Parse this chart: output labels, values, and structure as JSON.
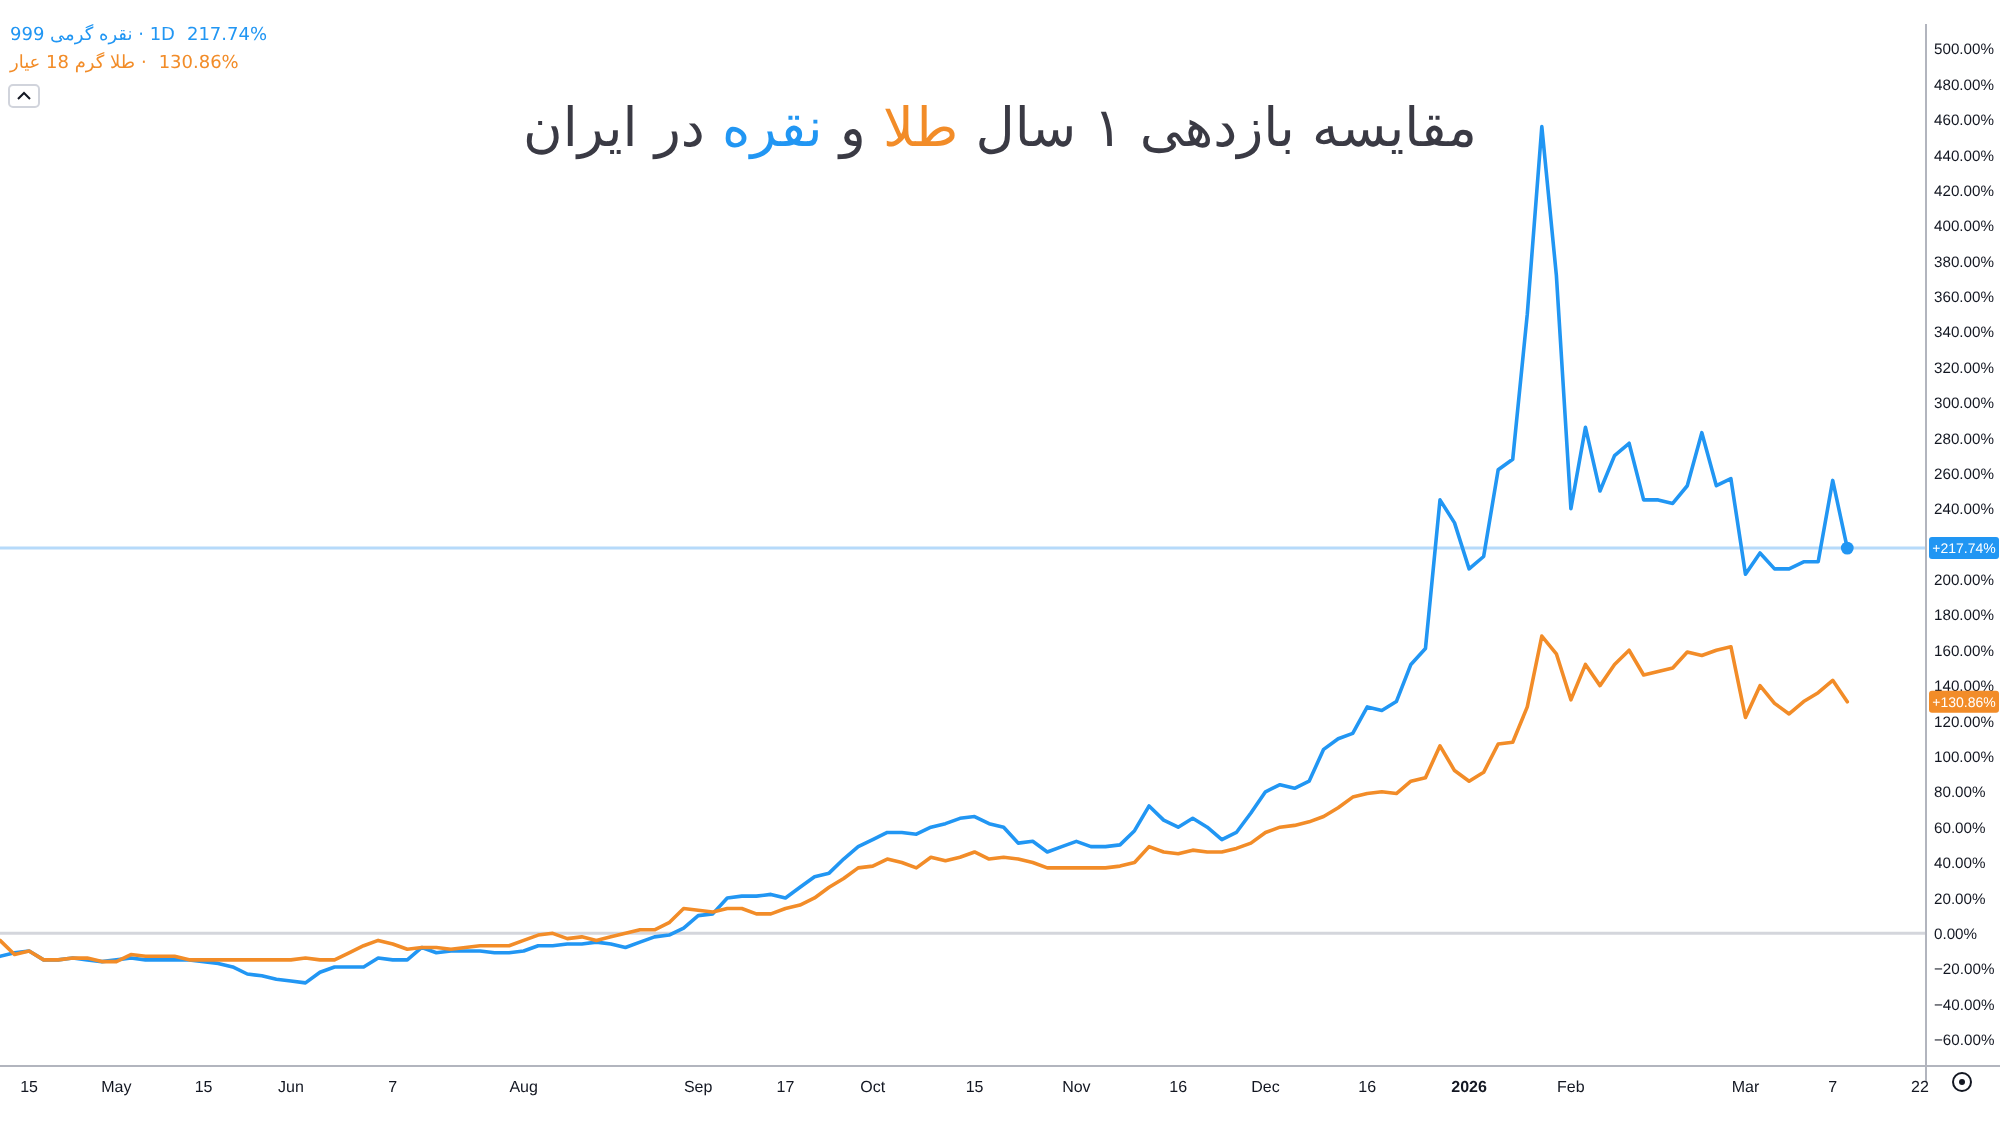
{
  "chart_data": {
    "type": "line",
    "title": "مقایسه بازدهی ۱ سال طلا و نقره در ایران",
    "categories": [
      null,
      null,
      "15",
      null,
      null,
      null,
      null,
      null,
      "May",
      null,
      null,
      null,
      null,
      null,
      "15",
      null,
      null,
      null,
      null,
      null,
      "Jun",
      null,
      null,
      null,
      null,
      null,
      null,
      "7",
      null,
      null,
      null,
      null,
      null,
      null,
      null,
      null,
      "Aug",
      null,
      null,
      null,
      null,
      null,
      null,
      null,
      null,
      null,
      null,
      null,
      "Sep",
      null,
      null,
      null,
      null,
      null,
      "17",
      null,
      null,
      null,
      null,
      null,
      "Oct",
      null,
      null,
      null,
      null,
      null,
      null,
      "15",
      null,
      null,
      null,
      null,
      null,
      null,
      "Nov",
      null,
      null,
      null,
      null,
      null,
      null,
      "16",
      null,
      null,
      null,
      null,
      null,
      "Dec",
      null,
      null,
      null,
      null,
      null,
      null,
      "16",
      null,
      null,
      null,
      null,
      null,
      null,
      "2026",
      null,
      null,
      null,
      null,
      null,
      null,
      "Feb",
      null,
      null,
      null,
      null,
      null,
      null,
      null,
      null,
      null,
      null,
      null,
      "Mar",
      null,
      null,
      null,
      null,
      null,
      "7",
      null,
      null,
      null,
      null,
      null,
      "22"
    ],
    "series": [
      {
        "name": "نقره گرمی 999 · 1D",
        "color": "#2196f3",
        "values": [
          -13,
          -11,
          -10,
          -15,
          -15,
          -14,
          -15,
          -16,
          -15,
          -14,
          -15,
          -15,
          -15,
          -15,
          -16,
          -17,
          -19,
          -23,
          -24,
          -26,
          -27,
          -28,
          -22,
          -19,
          -19,
          -19,
          -14,
          -15,
          -15,
          -8,
          -11,
          -10,
          -10,
          -10,
          -11,
          -11,
          -10,
          -7,
          -7,
          -6,
          -6,
          -5,
          -6,
          -8,
          -5,
          -2,
          -1,
          3,
          10,
          11,
          20,
          21,
          21,
          22,
          20,
          26,
          32,
          34,
          42,
          49,
          53,
          57,
          57,
          56,
          60,
          62,
          65,
          66,
          62,
          60,
          51,
          52,
          46,
          49,
          52,
          49,
          49,
          50,
          58,
          72,
          64,
          60,
          65,
          60,
          53,
          57,
          68,
          80,
          84,
          82,
          86,
          104,
          110,
          113,
          128,
          126,
          131,
          152,
          161,
          245,
          232,
          206,
          213,
          262,
          268,
          350,
          456,
          372,
          240,
          286,
          250,
          270,
          277,
          245,
          245,
          243,
          253,
          283,
          253,
          257,
          203,
          215,
          206,
          206,
          210,
          210,
          256,
          217.74,
          null,
          null,
          null,
          null,
          null
        ]
      },
      {
        "name": "طلا گرم 18 عیار ·",
        "color": "#f28c28",
        "values": [
          -4,
          -12,
          -10,
          -15,
          -15,
          -14,
          -14,
          -16,
          -16,
          -12,
          -13,
          -13,
          -13,
          -15,
          -15,
          -15,
          -15,
          -15,
          -15,
          -15,
          -15,
          -14,
          -15,
          -15,
          -11,
          -7,
          -4,
          -6,
          -9,
          -8,
          -8,
          -9,
          -8,
          -7,
          -7,
          -7,
          -4,
          -1,
          0,
          -3,
          -2,
          -4,
          -2,
          0,
          2,
          2,
          6,
          14,
          13,
          12,
          14,
          14,
          11,
          11,
          14,
          16,
          20,
          26,
          31,
          37,
          38,
          42,
          40,
          37,
          43,
          41,
          43,
          46,
          42,
          43,
          42,
          40,
          37,
          37,
          37,
          37,
          37,
          38,
          40,
          49,
          46,
          45,
          47,
          46,
          46,
          48,
          51,
          57,
          60,
          61,
          63,
          66,
          71,
          77,
          79,
          80,
          79,
          86,
          88,
          106,
          92,
          86,
          91,
          107,
          108,
          128,
          168,
          158,
          132,
          152,
          140,
          152,
          160,
          146,
          148,
          150,
          159,
          157,
          160,
          162,
          122,
          140,
          130,
          124,
          131,
          136,
          143,
          130.86,
          null,
          null,
          null,
          null,
          null
        ]
      },
      {
        "type": "scatter",
        "color": "#2196f3",
        "marker": "circle",
        "values": [
          null,
          null,
          null,
          null,
          null,
          null,
          null,
          null,
          null,
          null,
          null,
          null,
          null,
          null,
          null,
          null,
          null,
          null,
          null,
          null,
          null,
          null,
          null,
          null,
          null,
          null,
          null,
          null,
          null,
          null,
          null,
          null,
          null,
          null,
          null,
          null,
          null,
          null,
          null,
          null,
          null,
          null,
          null,
          null,
          null,
          null,
          null,
          null,
          null,
          null,
          null,
          null,
          null,
          null,
          null,
          null,
          null,
          null,
          null,
          null,
          null,
          null,
          null,
          null,
          null,
          null,
          null,
          null,
          null,
          null,
          null,
          null,
          null,
          null,
          null,
          null,
          null,
          null,
          null,
          null,
          null,
          null,
          null,
          null,
          null,
          null,
          null,
          null,
          null,
          null,
          null,
          null,
          null,
          null,
          null,
          null,
          null,
          null,
          null,
          null,
          null,
          null,
          null,
          null,
          null,
          null,
          null,
          null,
          null,
          null,
          null,
          null,
          null,
          null,
          null,
          null,
          null,
          null,
          null,
          null,
          null,
          null,
          null,
          null,
          null,
          null,
          null,
          217.74,
          null,
          null,
          null,
          null,
          null
        ]
      }
    ],
    "ylim": [
      -75,
      514
    ],
    "yticks": [
      {
        "value": -60,
        "label": "−60.00%"
      },
      {
        "value": -40,
        "label": "−40.00%"
      },
      {
        "value": -20,
        "label": "−20.00%"
      },
      {
        "value": 0,
        "label": "0.00%"
      },
      {
        "value": 20,
        "label": "20.00%"
      },
      {
        "value": 40,
        "label": "40.00%"
      },
      {
        "value": 60,
        "label": "60.00%"
      },
      {
        "value": 80,
        "label": "80.00%"
      },
      {
        "value": 100,
        "label": "100.00%"
      },
      {
        "value": 120,
        "label": "120.00%"
      },
      {
        "value": 140,
        "label": "140.00%"
      },
      {
        "value": 160,
        "label": "160.00%"
      },
      {
        "value": 180,
        "label": "180.00%"
      },
      {
        "value": 200,
        "label": "200.00%"
      },
      {
        "value": 220,
        "label": null
      },
      {
        "value": 240,
        "label": "240.00%"
      },
      {
        "value": 260,
        "label": "260.00%"
      },
      {
        "value": 280,
        "label": "280.00%"
      },
      {
        "value": 300,
        "label": "300.00%"
      },
      {
        "value": 320,
        "label": "320.00%"
      },
      {
        "value": 340,
        "label": "340.00%"
      },
      {
        "value": 360,
        "label": "360.00%"
      },
      {
        "value": 380,
        "label": "380.00%"
      },
      {
        "value": 400,
        "label": "400.00%"
      },
      {
        "value": 420,
        "label": "420.00%"
      },
      {
        "value": 440,
        "label": "440.00%"
      },
      {
        "value": 460,
        "label": "460.00%"
      },
      {
        "value": 480,
        "label": "480.00%"
      },
      {
        "value": 500,
        "label": "500.00%"
      }
    ],
    "ref_lines": [
      {
        "axis": "y",
        "value": 0,
        "color": "#d4d6dc"
      },
      {
        "axis": "y",
        "value": 217.74,
        "color": "#b6dafa"
      }
    ],
    "annotations": [
      "217.74%",
      "130.86%",
      {
        "text": "+217.74%",
        "y": 217.74
      },
      {
        "text": "+130.86%",
        "y": 130.86
      }
    ],
    "legend": "top left"
  }
}
